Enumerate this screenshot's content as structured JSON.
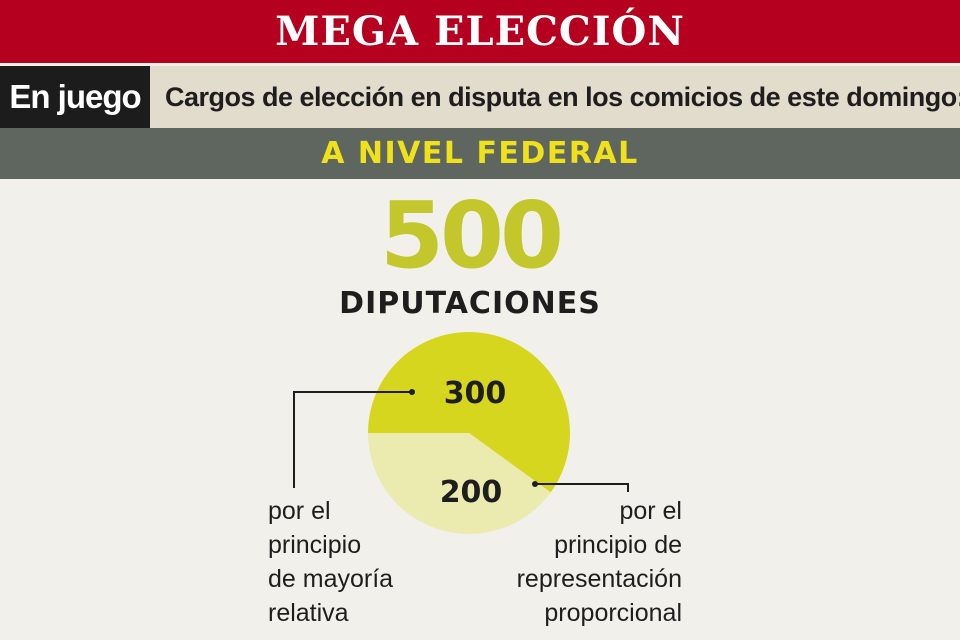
{
  "header": {
    "title": "MEGA ELECCIÓN",
    "tag": "En juego",
    "subtitle": "Cargos de elección en disputa en los comicios de este domingo:"
  },
  "section": {
    "level": "A NIVEL FEDERAL"
  },
  "total": {
    "value": "500",
    "label": "DIPUTACIONES"
  },
  "colors": {
    "banner": "#b5001f",
    "level_text": "#f0e21a",
    "total": "#c4c72b",
    "slice_major": "#d6d61e",
    "slice_minor": "#ebeaaf"
  },
  "chart_data": {
    "type": "pie",
    "title": "",
    "slices": [
      {
        "label": "300",
        "value": 300,
        "description": "por el\nprincipio\nde mayoría\nrelativa",
        "color": "#d6d61e"
      },
      {
        "label": "200",
        "value": 200,
        "description": "por el\nprincipio de\nrepresentación\nproporcional",
        "color": "#ebeaaf"
      }
    ]
  }
}
